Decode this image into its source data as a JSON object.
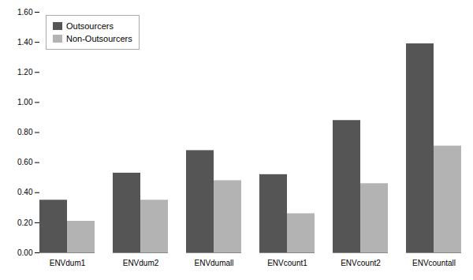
{
  "chart_data": {
    "type": "bar",
    "categories": [
      "ENVdum1",
      "ENVdum2",
      "ENVdumall",
      "ENVcount1",
      "ENVcount2",
      "ENVcountall"
    ],
    "series": [
      {
        "name": "Outsourcers",
        "color": "#555555",
        "values": [
          0.35,
          0.53,
          0.68,
          0.52,
          0.88,
          1.39
        ]
      },
      {
        "name": "Non-Outsourcers",
        "color": "#b3b3b3",
        "values": [
          0.21,
          0.35,
          0.48,
          0.26,
          0.46,
          0.71
        ]
      }
    ],
    "ylim": [
      0.0,
      1.6
    ],
    "yticks": [
      {
        "value": 0.0,
        "label": "0.00"
      },
      {
        "value": 0.2,
        "label": "0.20"
      },
      {
        "value": 0.4,
        "label": "0.40"
      },
      {
        "value": 0.6,
        "label": "0.60"
      },
      {
        "value": 0.8,
        "label": "0.80"
      },
      {
        "value": 1.0,
        "label": "1.00"
      },
      {
        "value": 1.2,
        "label": "1.20"
      },
      {
        "value": 1.4,
        "label": "1.40"
      },
      {
        "value": 1.6,
        "label": "1.60"
      }
    ],
    "grid": false,
    "legend": "upper left"
  }
}
